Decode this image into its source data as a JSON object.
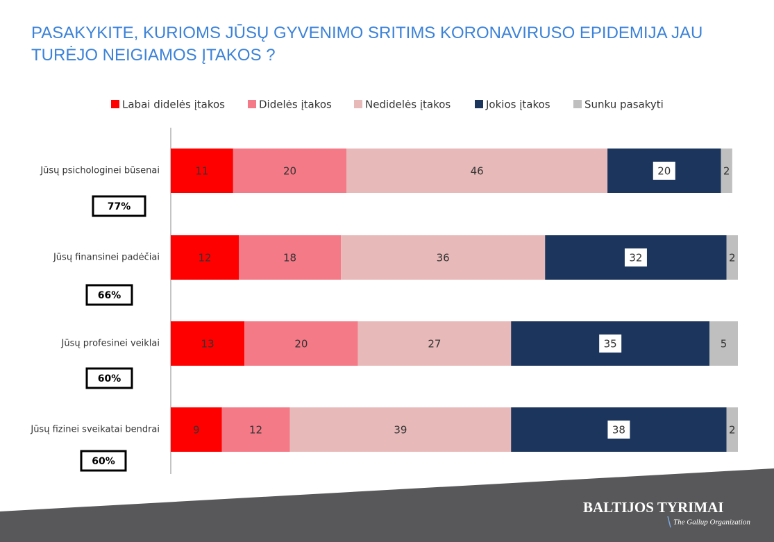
{
  "chart_data": {
    "type": "stacked-bar-horizontal",
    "title": "PASAKYKITE, KURIOMS JŪSŲ GYVENIMO SRITIMS KORONAVIRUSO EPIDEMIJA JAU TURĖJO NEIGIAMOS ĮTAKOS ?",
    "categories": [
      "Jūsų psichologinei būsenai",
      "Jūsų finansinei padėčiai",
      "Jūsų profesinei veiklai",
      "Jūsų fizinei sveikatai bendrai"
    ],
    "annotations": [
      "77%",
      "66%",
      "60%",
      "60%"
    ],
    "series": [
      {
        "name": "Labai didelės įtakos",
        "color": "#ff0000",
        "values": [
          11,
          12,
          13,
          9
        ]
      },
      {
        "name": "Didelės įtakos",
        "color": "#f47a87",
        "values": [
          20,
          18,
          20,
          12
        ]
      },
      {
        "name": "Nedidelės įtakos",
        "color": "#e8b9b9",
        "values": [
          46,
          36,
          27,
          39
        ]
      },
      {
        "name": "Jokios įtakos",
        "color": "#1b355c",
        "values": [
          20,
          32,
          35,
          38
        ]
      },
      {
        "name": "Sunku pasakyti",
        "color": "#bfbfbf",
        "values": [
          2,
          2,
          5,
          2
        ]
      }
    ],
    "legend": "top",
    "logo": {
      "name": "BALTIJOS TYRIMAI",
      "tagline": "The Gallup Organization"
    }
  }
}
